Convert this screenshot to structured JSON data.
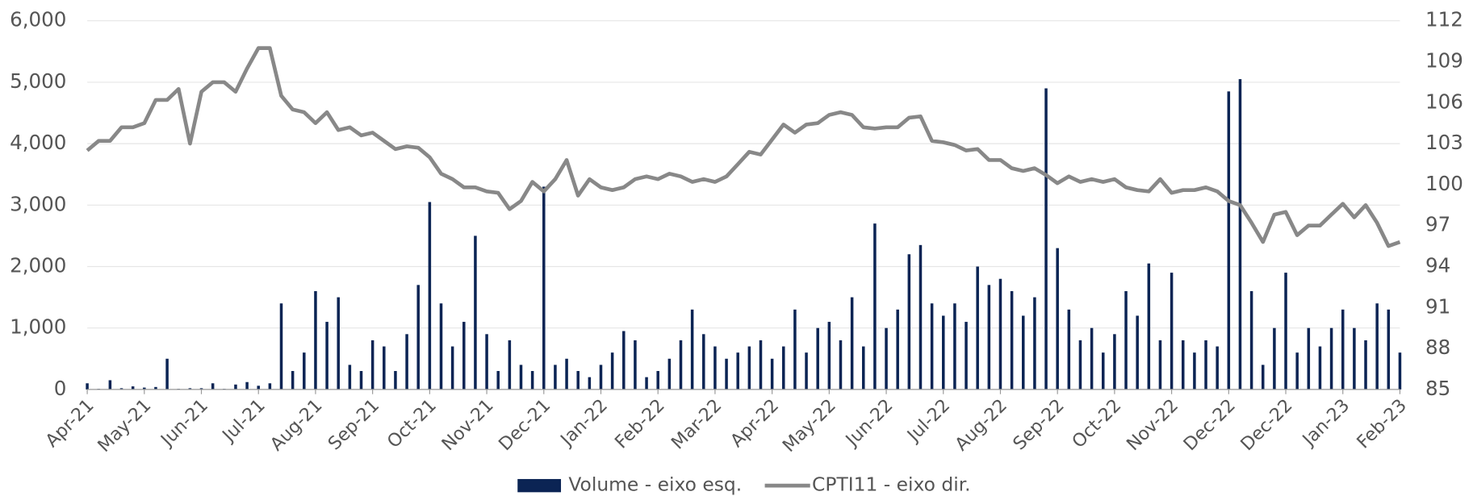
{
  "chart_data": {
    "type": "bar",
    "categories": [
      "Apr-21",
      null,
      null,
      null,
      null,
      "May-21",
      null,
      null,
      null,
      null,
      "Jun-21",
      null,
      null,
      null,
      null,
      "Jul-21",
      null,
      null,
      null,
      null,
      "Aug-21",
      null,
      null,
      null,
      null,
      "Sep-21",
      null,
      null,
      null,
      null,
      "Oct-21",
      null,
      null,
      null,
      null,
      "Nov-21",
      null,
      null,
      null,
      null,
      "Dec-21",
      null,
      null,
      null,
      null,
      "Jan-22",
      null,
      null,
      null,
      null,
      "Feb-22",
      null,
      null,
      null,
      null,
      "Mar-22",
      null,
      null,
      null,
      null,
      "Apr-22",
      null,
      null,
      null,
      null,
      "May-22",
      null,
      null,
      null,
      null,
      "Jun-22",
      null,
      null,
      null,
      null,
      "Jul-22",
      null,
      null,
      null,
      null,
      "Aug-22",
      null,
      null,
      null,
      null,
      "Sep-22",
      null,
      null,
      null,
      null,
      "Oct-22",
      null,
      null,
      null,
      null,
      "Nov-22",
      null,
      null,
      null,
      null,
      "Dec-22",
      null,
      null,
      null,
      null,
      "Dec-22",
      null,
      null,
      null,
      null,
      "Jan-23",
      null,
      null,
      null,
      null,
      "Feb-23"
    ],
    "series": [
      {
        "name": "Volume - eixo esq.",
        "type": "bar",
        "color": "#0b2454",
        "values": [
          100,
          10,
          150,
          20,
          50,
          30,
          40,
          500,
          10,
          20,
          20,
          100,
          10,
          80,
          120,
          60,
          100,
          1400,
          300,
          600,
          1600,
          1100,
          1500,
          400,
          300,
          800,
          700,
          300,
          900,
          1700,
          3050,
          1400,
          700,
          1100,
          2500,
          900,
          300,
          800,
          400,
          300,
          3300,
          400,
          500,
          300,
          200,
          400,
          600,
          950,
          800,
          200,
          300,
          500,
          800,
          1300,
          900,
          700,
          500,
          600,
          700,
          800,
          500,
          700,
          1300,
          600,
          1000,
          1100,
          800,
          1500,
          700,
          2700,
          1000,
          1300,
          2200,
          2350,
          1400,
          1200,
          1400,
          1100,
          2000,
          1700,
          1800,
          1600,
          1200,
          1500,
          4900,
          2300,
          1300,
          800,
          1000,
          600,
          900,
          1600,
          1200,
          2050,
          800,
          1900,
          800,
          600,
          800,
          700,
          4850,
          5050,
          1600,
          400,
          1000,
          1900,
          600,
          1000,
          700,
          1000,
          1300,
          1000,
          800,
          1400,
          1300,
          600
        ]
      },
      {
        "name": "CPTI11 - eixo dir.",
        "type": "line",
        "axis": "y2",
        "color": "#888888",
        "values": [
          102.5,
          103.2,
          103.2,
          104.2,
          104.2,
          104.5,
          106.2,
          106.2,
          107,
          103,
          106.8,
          107.5,
          107.5,
          106.8,
          108.5,
          110,
          110,
          106.5,
          105.5,
          105.3,
          104.5,
          105.3,
          104,
          104.2,
          103.6,
          103.8,
          103.2,
          102.6,
          102.8,
          102.7,
          102,
          100.8,
          100.4,
          99.8,
          99.8,
          99.5,
          99.4,
          98.2,
          98.8,
          100.2,
          99.5,
          100.4,
          101.8,
          99.2,
          100.4,
          99.8,
          99.6,
          99.8,
          100.4,
          100.6,
          100.4,
          100.8,
          100.6,
          100.2,
          100.4,
          100.2,
          100.6,
          101.5,
          102.4,
          102.2,
          103.3,
          104.4,
          103.8,
          104.4,
          104.5,
          105.1,
          105.3,
          105.1,
          104.2,
          104.1,
          104.2,
          104.2,
          104.9,
          105,
          103.2,
          103.1,
          102.9,
          102.5,
          102.6,
          101.8,
          101.8,
          101.2,
          101,
          101.2,
          100.7,
          100.1,
          100.6,
          100.2,
          100.4,
          100.2,
          100.4,
          99.8,
          99.6,
          99.5,
          100.4,
          99.4,
          99.6,
          99.6,
          99.8,
          99.5,
          98.8,
          98.5,
          97.2,
          95.8,
          97.8,
          98,
          96.3,
          97,
          97,
          97.8,
          98.6,
          97.6,
          98.5,
          97.2,
          95.5,
          95.8
        ]
      }
    ],
    "ylim": [
      0,
      6000
    ],
    "yticks": [
      0,
      {
        "value": 1000,
        "label": "1,000"
      },
      {
        "value": 2000,
        "label": "2,000"
      },
      {
        "value": 3000,
        "label": "3,000"
      },
      {
        "value": 4000,
        "label": "4,000"
      },
      {
        "value": 5000,
        "label": "5,000"
      },
      {
        "value": 6000,
        "label": "6,000"
      }
    ],
    "y2lim": [
      85,
      112
    ],
    "y2ticks": [
      85,
      88,
      91,
      94,
      97,
      100,
      103,
      106,
      109,
      112
    ],
    "grid": true,
    "legend": "bottom"
  }
}
